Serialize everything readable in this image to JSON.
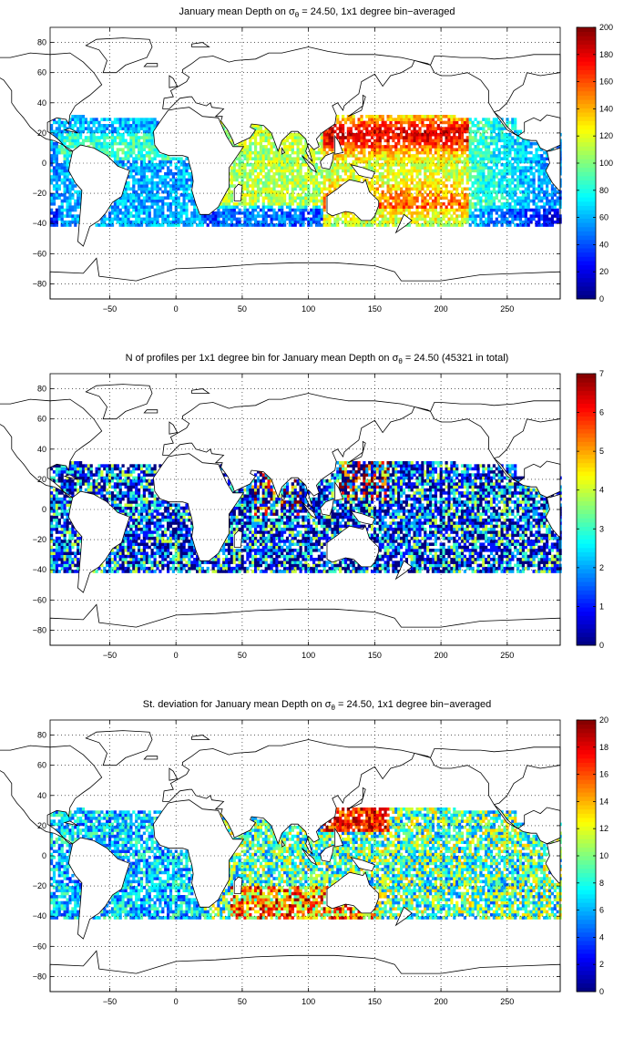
{
  "panels": [
    {
      "title_pre": "January mean Depth on σ",
      "title_sub": "θ",
      "title_post": " = 24.50, 1x1 degree bin−averaged",
      "colorbar": {
        "min": 0,
        "max": 200,
        "ticks": [
          "0",
          "20",
          "40",
          "60",
          "80",
          "100",
          "120",
          "140",
          "160",
          "180",
          "200"
        ]
      },
      "field": "mean_depth"
    },
    {
      "title_pre": "N of profiles per 1x1 degree bin for January mean Depth on σ",
      "title_sub": "θ",
      "title_post": " = 24.50 (45321 in total)",
      "colorbar": {
        "min": 0,
        "max": 7,
        "ticks": [
          "0",
          "1",
          "2",
          "3",
          "4",
          "5",
          "6",
          "7"
        ]
      },
      "field": "profile_count"
    },
    {
      "title_pre": "St. deviation for January mean Depth on σ",
      "title_sub": "θ",
      "title_post": " = 24.50, 1x1 degree bin−averaged",
      "colorbar": {
        "min": 0,
        "max": 20,
        "ticks": [
          "0",
          "2",
          "4",
          "6",
          "8",
          "10",
          "12",
          "14",
          "16",
          "18",
          "20"
        ]
      },
      "field": "std_depth"
    }
  ],
  "axes": {
    "x_ticks": [
      "-50",
      "0",
      "50",
      "100",
      "150",
      "200",
      "250"
    ],
    "y_ticks": [
      "80",
      "60",
      "40",
      "20",
      "0",
      "-20",
      "-40",
      "-60",
      "-80"
    ],
    "xlim": [
      -95,
      290
    ],
    "ylim": [
      -90,
      90
    ],
    "grid": "dotted"
  },
  "colormap": "jet"
}
